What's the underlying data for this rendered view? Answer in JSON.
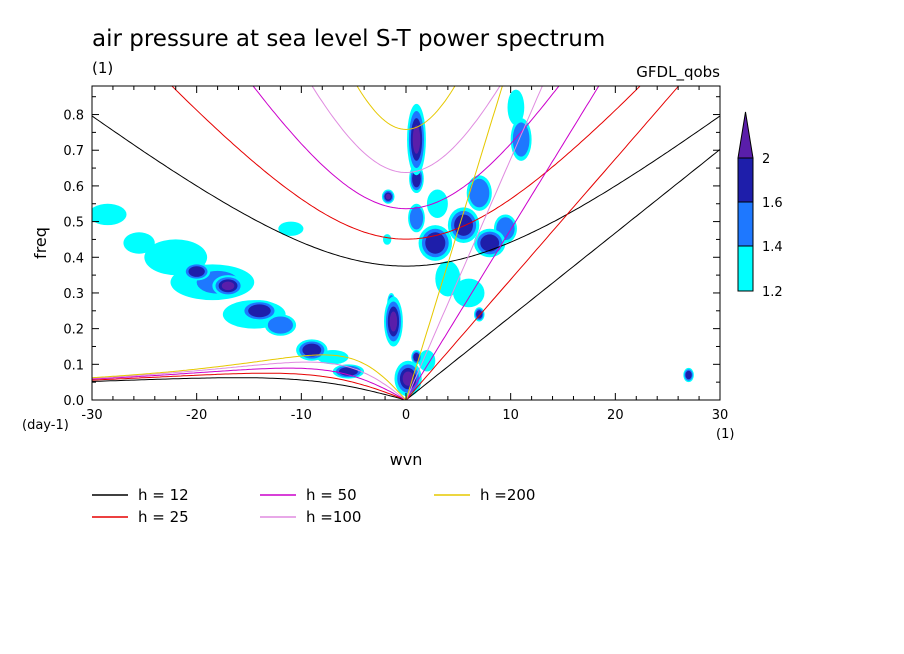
{
  "chart_data": {
    "type": "heatmap",
    "title": "air pressure at sea level S-T power spectrum",
    "subtitle_left": "(1)",
    "subtitle_right": "GFDL_qobs",
    "xlabel": "wvn",
    "ylabel": "freq",
    "x_unit": "(1)",
    "y_unit": "(day-1)",
    "xlim": [
      -30,
      30
    ],
    "ylim": [
      0,
      0.88
    ],
    "xticks": [
      -30,
      -20,
      -10,
      0,
      10,
      20,
      30
    ],
    "yticks": [
      0.0,
      0.1,
      0.2,
      0.3,
      0.4,
      0.5,
      0.6,
      0.7,
      0.8
    ],
    "colorbar": {
      "levels": [
        1.2,
        1.4,
        1.6,
        2
      ],
      "labels": [
        "1.2",
        "1.4",
        "1.6",
        "2"
      ],
      "colors": [
        "#00ffff",
        "#1e78ff",
        "#1e1eaa",
        "#5a1eaa"
      ]
    },
    "dispersion_curves": [
      {
        "name": "h = 12",
        "h": 12,
        "color": "#000000"
      },
      {
        "name": "h = 25",
        "h": 25,
        "color": "#e60000"
      },
      {
        "name": "h = 50",
        "h": 50,
        "color": "#cc00cc"
      },
      {
        "name": "h =100",
        "h": 100,
        "color": "#e08ce0"
      },
      {
        "name": "h =200",
        "h": 200,
        "color": "#e6c800"
      }
    ],
    "contour_regions": [
      {
        "x": 1.0,
        "y": 0.73,
        "rx": 0.9,
        "ry": 0.1,
        "level": 3
      },
      {
        "x": 1.0,
        "y": 0.62,
        "rx": 0.7,
        "ry": 0.04,
        "level": 2
      },
      {
        "x": -1.7,
        "y": 0.57,
        "rx": 0.6,
        "ry": 0.02,
        "level": 3
      },
      {
        "x": -1.2,
        "y": 0.22,
        "rx": 0.9,
        "ry": 0.07,
        "level": 3
      },
      {
        "x": -1.4,
        "y": 0.27,
        "rx": 0.4,
        "ry": 0.03,
        "level": 2
      },
      {
        "x": 0.2,
        "y": 0.06,
        "rx": 1.3,
        "ry": 0.05,
        "level": 3
      },
      {
        "x": 1.0,
        "y": 0.12,
        "rx": 0.5,
        "ry": 0.02,
        "level": 2
      },
      {
        "x": 1.0,
        "y": 0.51,
        "rx": 0.8,
        "ry": 0.04,
        "level": 1
      },
      {
        "x": 2.8,
        "y": 0.44,
        "rx": 1.6,
        "ry": 0.05,
        "level": 2
      },
      {
        "x": 3.0,
        "y": 0.55,
        "rx": 1.0,
        "ry": 0.04,
        "level": 0
      },
      {
        "x": 5.5,
        "y": 0.49,
        "rx": 1.5,
        "ry": 0.05,
        "level": 2
      },
      {
        "x": 7.0,
        "y": 0.58,
        "rx": 1.2,
        "ry": 0.05,
        "level": 1
      },
      {
        "x": 8.0,
        "y": 0.44,
        "rx": 1.5,
        "ry": 0.04,
        "level": 2
      },
      {
        "x": 9.5,
        "y": 0.48,
        "rx": 1.1,
        "ry": 0.04,
        "level": 1
      },
      {
        "x": 11.0,
        "y": 0.73,
        "rx": 1.0,
        "ry": 0.06,
        "level": 1
      },
      {
        "x": 10.5,
        "y": 0.82,
        "rx": 0.8,
        "ry": 0.05,
        "level": 0
      },
      {
        "x": 4.0,
        "y": 0.34,
        "rx": 1.2,
        "ry": 0.05,
        "level": 0
      },
      {
        "x": 6.0,
        "y": 0.3,
        "rx": 1.5,
        "ry": 0.04,
        "level": 0
      },
      {
        "x": 7.0,
        "y": 0.24,
        "rx": 0.5,
        "ry": 0.02,
        "level": 2
      },
      {
        "x": 2.0,
        "y": 0.11,
        "rx": 0.8,
        "ry": 0.03,
        "level": 0
      },
      {
        "x": -28.5,
        "y": 0.52,
        "rx": 1.8,
        "ry": 0.03,
        "level": 0
      },
      {
        "x": -25.5,
        "y": 0.44,
        "rx": 1.5,
        "ry": 0.03,
        "level": 0
      },
      {
        "x": -22.0,
        "y": 0.4,
        "rx": 3.0,
        "ry": 0.05,
        "level": 0
      },
      {
        "x": -18.5,
        "y": 0.33,
        "rx": 4.0,
        "ry": 0.05,
        "level": 0
      },
      {
        "x": -18.0,
        "y": 0.33,
        "rx": 2.5,
        "ry": 0.04,
        "level": 1
      },
      {
        "x": -17.0,
        "y": 0.32,
        "rx": 1.5,
        "ry": 0.03,
        "level": 3
      },
      {
        "x": -20.0,
        "y": 0.36,
        "rx": 1.3,
        "ry": 0.025,
        "level": 2
      },
      {
        "x": -14.5,
        "y": 0.24,
        "rx": 3.0,
        "ry": 0.04,
        "level": 0
      },
      {
        "x": -14.0,
        "y": 0.25,
        "rx": 1.8,
        "ry": 0.03,
        "level": 2
      },
      {
        "x": -12.0,
        "y": 0.21,
        "rx": 1.5,
        "ry": 0.03,
        "level": 1
      },
      {
        "x": -9.0,
        "y": 0.14,
        "rx": 1.5,
        "ry": 0.03,
        "level": 2
      },
      {
        "x": -7.0,
        "y": 0.12,
        "rx": 1.5,
        "ry": 0.02,
        "level": 0
      },
      {
        "x": -5.5,
        "y": 0.08,
        "rx": 1.5,
        "ry": 0.02,
        "level": 2
      },
      {
        "x": -11.0,
        "y": 0.48,
        "rx": 1.2,
        "ry": 0.02,
        "level": 0
      },
      {
        "x": 27.0,
        "y": 0.07,
        "rx": 0.5,
        "ry": 0.02,
        "level": 2
      },
      {
        "x": -1.8,
        "y": 0.45,
        "rx": 0.4,
        "ry": 0.015,
        "level": 0
      }
    ]
  },
  "legend": {
    "entries": [
      "h = 12",
      "h = 25",
      "h = 50",
      "h =100",
      "h =200"
    ]
  }
}
